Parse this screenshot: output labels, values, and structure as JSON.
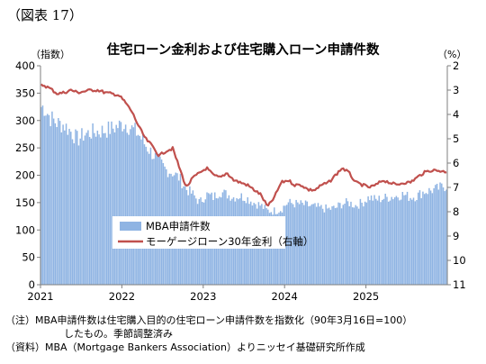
{
  "figure_label": "（図表 17）",
  "title": "住宅ローン金利および住宅購入ローン申請件数",
  "left_unit": "（指数）",
  "right_unit": "（%）",
  "notes": {
    "note1": "（注）MBA申請件数は住宅購入目的の住宅ローン申請件数を指数化（90年3月16日=100）",
    "note2": "したもの。季節調整済み",
    "source": "（資料）MBA（Mortgage Bankers Association）よりニッセイ基礎研究所作成"
  },
  "colors": {
    "bars": "#8fb4e3",
    "line": "#c0504d",
    "axis": "#7f7f7f"
  },
  "chart_data": {
    "type": "bar+line",
    "x_axis": {
      "ticks": [
        "2021",
        "2022",
        "2023",
        "2024",
        "2025"
      ],
      "range": [
        "2021-01",
        "2025-12"
      ]
    },
    "y_left": {
      "label": "指数",
      "range": [
        0,
        400
      ],
      "ticks": [
        0,
        50,
        100,
        150,
        200,
        250,
        300,
        350,
        400
      ]
    },
    "y_right": {
      "label": "%",
      "range": [
        2,
        11
      ],
      "inverted": true,
      "ticks": [
        2,
        3,
        4,
        5,
        6,
        7,
        8,
        9,
        10,
        11
      ]
    },
    "grid": false,
    "legend_position": "inside-lower-left",
    "series": [
      {
        "name": "MBA申請件数",
        "type": "bar",
        "axis": "left",
        "frequency": "weekly",
        "points": [
          [
            "2021-01",
            325
          ],
          [
            "2021-02",
            305
          ],
          [
            "2021-03",
            295
          ],
          [
            "2021-04",
            292
          ],
          [
            "2021-05",
            280
          ],
          [
            "2021-06",
            265
          ],
          [
            "2021-07",
            275
          ],
          [
            "2021-08",
            278
          ],
          [
            "2021-09",
            280
          ],
          [
            "2021-10",
            282
          ],
          [
            "2021-11",
            285
          ],
          [
            "2021-12",
            290
          ],
          [
            "2022-01",
            295
          ],
          [
            "2022-02",
            285
          ],
          [
            "2022-03",
            275
          ],
          [
            "2022-04",
            255
          ],
          [
            "2022-05",
            240
          ],
          [
            "2022-06",
            225
          ],
          [
            "2022-07",
            210
          ],
          [
            "2022-08",
            205
          ],
          [
            "2022-09",
            195
          ],
          [
            "2022-10",
            175
          ],
          [
            "2022-11",
            165
          ],
          [
            "2022-12",
            150
          ],
          [
            "2023-01",
            165
          ],
          [
            "2023-02",
            160
          ],
          [
            "2023-03",
            170
          ],
          [
            "2023-04",
            165
          ],
          [
            "2023-05",
            160
          ],
          [
            "2023-06",
            162
          ],
          [
            "2023-07",
            158
          ],
          [
            "2023-08",
            150
          ],
          [
            "2023-09",
            145
          ],
          [
            "2023-10",
            135
          ],
          [
            "2023-11",
            135
          ],
          [
            "2023-12",
            138
          ],
          [
            "2024-01",
            150
          ],
          [
            "2024-02",
            148
          ],
          [
            "2024-03",
            147
          ],
          [
            "2024-04",
            145
          ],
          [
            "2024-05",
            142
          ],
          [
            "2024-06",
            140
          ],
          [
            "2024-07",
            138
          ],
          [
            "2024-08",
            140
          ],
          [
            "2024-09",
            148
          ],
          [
            "2024-10",
            150
          ],
          [
            "2024-11",
            145
          ],
          [
            "2024-12",
            150
          ],
          [
            "2025-01",
            160
          ],
          [
            "2025-02",
            155
          ],
          [
            "2025-03",
            158
          ],
          [
            "2025-04",
            160
          ],
          [
            "2025-05",
            162
          ],
          [
            "2025-06",
            165
          ],
          [
            "2025-07",
            160
          ],
          [
            "2025-08",
            162
          ],
          [
            "2025-09",
            170
          ],
          [
            "2025-10",
            172
          ],
          [
            "2025-11",
            175
          ],
          [
            "2025-12",
            180
          ]
        ]
      },
      {
        "name": "モーゲージローン30年金利（右軸）",
        "type": "line",
        "axis": "right",
        "points": [
          [
            "2021-01",
            2.8
          ],
          [
            "2021-02",
            2.95
          ],
          [
            "2021-03",
            3.15
          ],
          [
            "2021-04",
            3.1
          ],
          [
            "2021-05",
            3.0
          ],
          [
            "2021-06",
            3.1
          ],
          [
            "2021-07",
            3.05
          ],
          [
            "2021-08",
            3.0
          ],
          [
            "2021-09",
            3.0
          ],
          [
            "2021-10",
            3.1
          ],
          [
            "2021-11",
            3.15
          ],
          [
            "2021-12",
            3.2
          ],
          [
            "2022-01",
            3.5
          ],
          [
            "2022-02",
            3.9
          ],
          [
            "2022-03",
            4.5
          ],
          [
            "2022-04",
            5.0
          ],
          [
            "2022-05",
            5.3
          ],
          [
            "2022-06",
            5.7
          ],
          [
            "2022-07",
            5.5
          ],
          [
            "2022-08",
            5.4
          ],
          [
            "2022-09",
            6.2
          ],
          [
            "2022-10",
            7.0
          ],
          [
            "2022-11",
            6.6
          ],
          [
            "2022-12",
            6.4
          ],
          [
            "2023-01",
            6.2
          ],
          [
            "2023-02",
            6.5
          ],
          [
            "2023-03",
            6.6
          ],
          [
            "2023-04",
            6.4
          ],
          [
            "2023-05",
            6.7
          ],
          [
            "2023-06",
            6.8
          ],
          [
            "2023-07",
            6.9
          ],
          [
            "2023-08",
            7.1
          ],
          [
            "2023-09",
            7.3
          ],
          [
            "2023-10",
            7.8
          ],
          [
            "2023-11",
            7.4
          ],
          [
            "2023-12",
            6.8
          ],
          [
            "2024-01",
            6.7
          ],
          [
            "2024-02",
            6.9
          ],
          [
            "2024-03",
            6.9
          ],
          [
            "2024-04",
            7.1
          ],
          [
            "2024-05",
            7.1
          ],
          [
            "2024-06",
            6.9
          ],
          [
            "2024-07",
            6.8
          ],
          [
            "2024-08",
            6.5
          ],
          [
            "2024-09",
            6.2
          ],
          [
            "2024-10",
            6.4
          ],
          [
            "2024-11",
            6.8
          ],
          [
            "2024-12",
            6.9
          ],
          [
            "2025-01",
            7.0
          ],
          [
            "2025-02",
            6.9
          ],
          [
            "2025-03",
            6.7
          ],
          [
            "2025-04",
            6.8
          ],
          [
            "2025-05",
            6.9
          ],
          [
            "2025-06",
            6.8
          ],
          [
            "2025-07",
            6.8
          ],
          [
            "2025-08",
            6.6
          ],
          [
            "2025-09",
            6.4
          ],
          [
            "2025-10",
            6.3
          ],
          [
            "2025-11",
            6.3
          ],
          [
            "2025-12",
            6.35
          ]
        ]
      }
    ]
  }
}
